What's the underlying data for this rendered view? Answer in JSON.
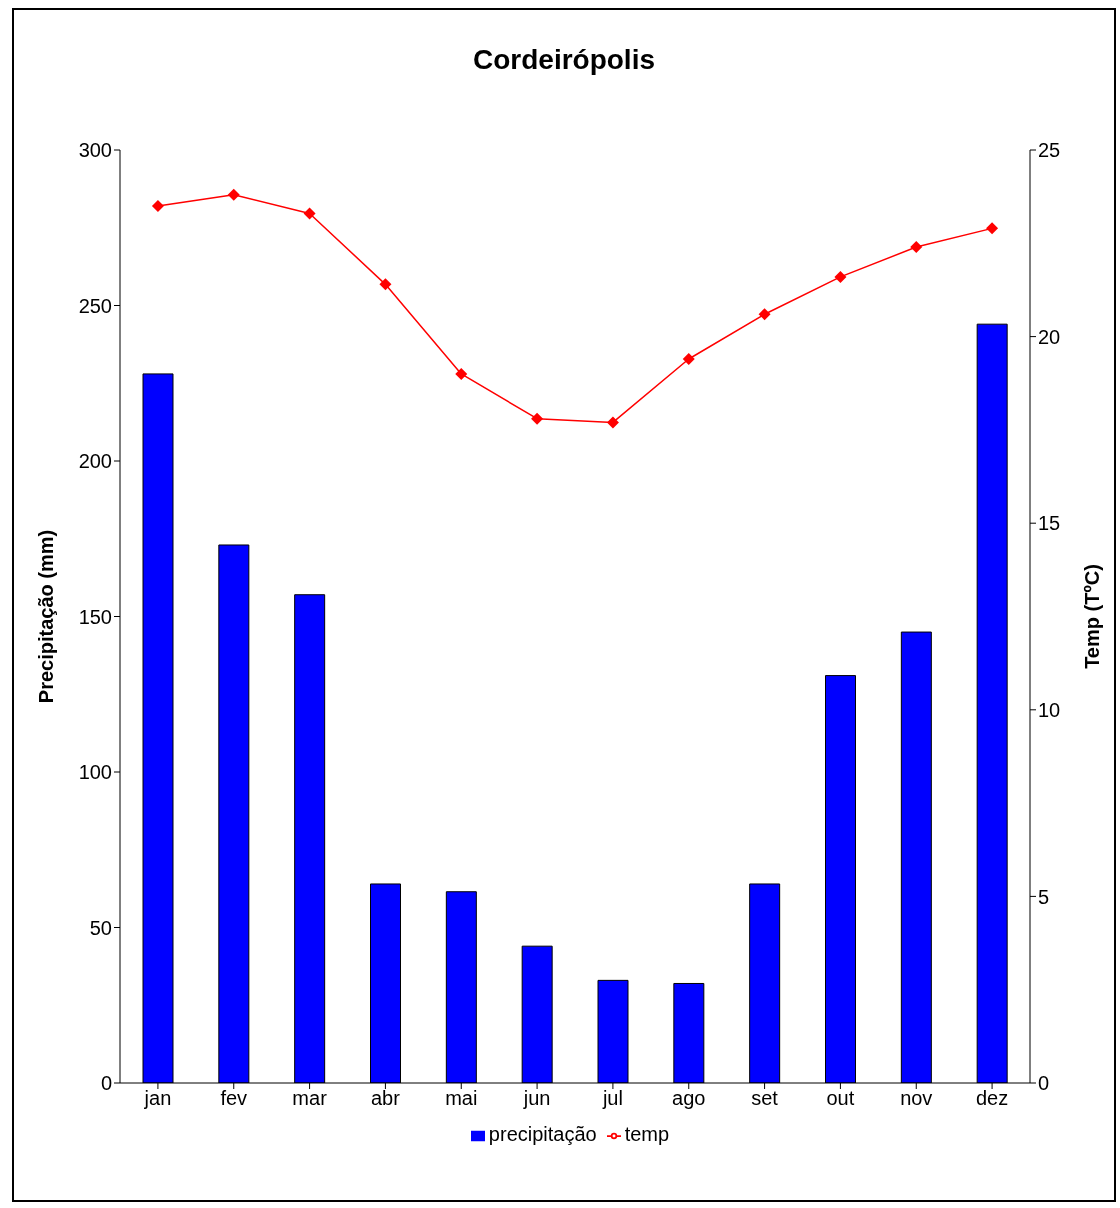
{
  "chart_data": {
    "type": "bar",
    "title": "Cordeirópolis",
    "ylabel": "Precipitação (mm)",
    "y2label": "Temp (TºC)",
    "categories": [
      "jan",
      "fev",
      "mar",
      "abr",
      "mai",
      "jun",
      "jul",
      "ago",
      "set",
      "out",
      "nov",
      "dez"
    ],
    "series": [
      {
        "name": "precipitação",
        "color": "#0000ff",
        "values": [
          228,
          173,
          157,
          64,
          61.5,
          44,
          33,
          32,
          64,
          131,
          145,
          244
        ]
      },
      {
        "name": "temp",
        "type": "line",
        "axis": "y2",
        "color": "#ff0000",
        "marker": "diamond",
        "values": [
          23.5,
          23.8,
          23.3,
          21.4,
          19.0,
          17.8,
          17.7,
          19.4,
          20.6,
          21.6,
          22.4,
          22.9
        ]
      }
    ],
    "ylim": [
      0,
      300
    ],
    "yticks": [
      0,
      50,
      100,
      150,
      200,
      250,
      300
    ],
    "y2lim": [
      0,
      25
    ],
    "y2ticks": [
      0,
      5,
      10,
      15,
      20,
      25
    ],
    "grid": false,
    "legend": "bottom"
  }
}
